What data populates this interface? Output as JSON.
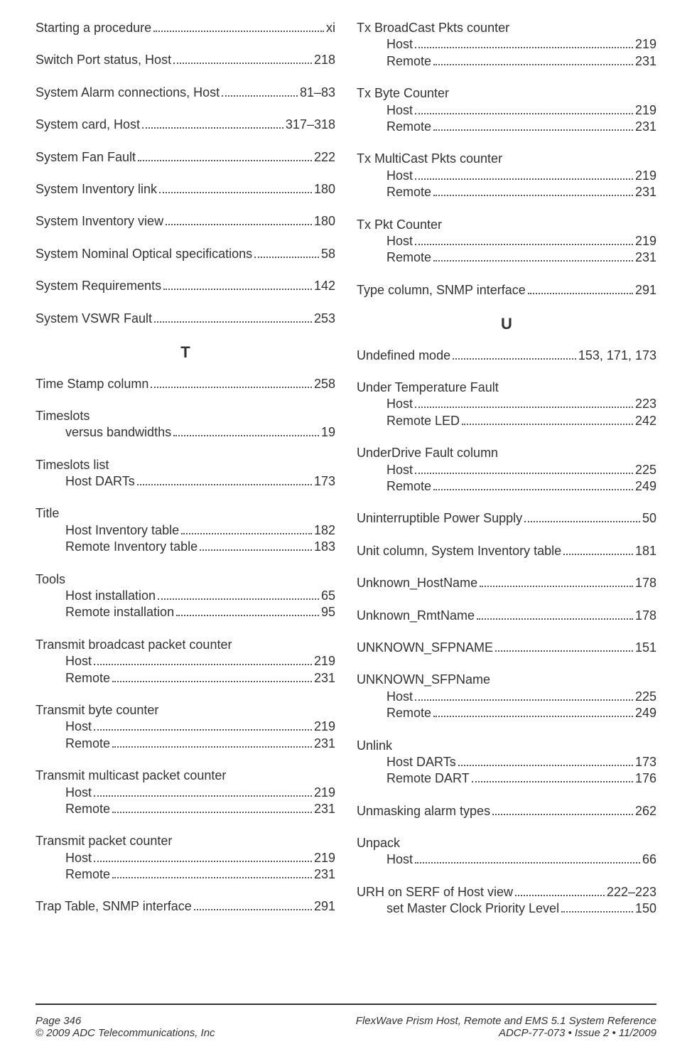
{
  "footer": {
    "page_label": "Page 346",
    "copyright": "©  2009 ADC Telecommunications, Inc",
    "doc_title": "FlexWave Prism Host, Remote and EMS 5.1 System Reference",
    "doc_meta": "ADCP-77-073   •   Issue 2   •   11/2009"
  },
  "section_T": "T",
  "section_U": "U",
  "left": [
    {
      "t": "single",
      "label": "Starting a procedure",
      "page": "xi"
    },
    {
      "t": "single",
      "label": "Switch Port status, Host",
      "page": "218"
    },
    {
      "t": "single",
      "label": "System Alarm connections, Host",
      "page": "81–83"
    },
    {
      "t": "single",
      "label": "System card, Host",
      "page": "317–318"
    },
    {
      "t": "single",
      "label": "System Fan Fault",
      "page": "222"
    },
    {
      "t": "single",
      "label": "System Inventory link",
      "page": "180"
    },
    {
      "t": "single",
      "label": "System Inventory view",
      "page": "180"
    },
    {
      "t": "single",
      "label": "System Nominal Optical specifications",
      "page": "58"
    },
    {
      "t": "single",
      "label": "System Requirements",
      "page": "142"
    },
    {
      "t": "single",
      "label": "System VSWR Fault",
      "page": "253"
    },
    {
      "t": "letter",
      "value": "T"
    },
    {
      "t": "single",
      "label": "Time Stamp column",
      "page": "258"
    },
    {
      "t": "group",
      "head": "Timeslots",
      "subs": [
        {
          "label": "versus bandwidths",
          "page": "19"
        }
      ]
    },
    {
      "t": "group",
      "head": "Timeslots list",
      "subs": [
        {
          "label": "Host DARTs",
          "page": "173"
        }
      ]
    },
    {
      "t": "group",
      "head": "Title",
      "subs": [
        {
          "label": "Host Inventory table",
          "page": "182"
        },
        {
          "label": "Remote Inventory table",
          "page": "183"
        }
      ]
    },
    {
      "t": "group",
      "head": "Tools",
      "subs": [
        {
          "label": "Host installation",
          "page": "65"
        },
        {
          "label": "Remote installation",
          "page": "95"
        }
      ]
    },
    {
      "t": "group",
      "head": "Transmit broadcast packet counter",
      "subs": [
        {
          "label": "Host",
          "page": "219"
        },
        {
          "label": "Remote",
          "page": "231"
        }
      ]
    },
    {
      "t": "group",
      "head": "Transmit byte counter",
      "subs": [
        {
          "label": "Host",
          "page": "219"
        },
        {
          "label": "Remote",
          "page": "231"
        }
      ]
    },
    {
      "t": "group",
      "head": "Transmit multicast packet counter",
      "subs": [
        {
          "label": "Host",
          "page": "219"
        },
        {
          "label": "Remote",
          "page": "231"
        }
      ]
    },
    {
      "t": "group",
      "head": "Transmit packet counter",
      "subs": [
        {
          "label": "Host",
          "page": "219"
        },
        {
          "label": "Remote",
          "page": "231"
        }
      ]
    },
    {
      "t": "single",
      "label": "Trap Table, SNMP interface",
      "page": "291"
    }
  ],
  "right": [
    {
      "t": "group",
      "head": "Tx BroadCast Pkts counter",
      "subs": [
        {
          "label": "Host",
          "page": "219"
        },
        {
          "label": "Remote",
          "page": "231"
        }
      ]
    },
    {
      "t": "group",
      "head": "Tx Byte Counter",
      "subs": [
        {
          "label": "Host",
          "page": "219"
        },
        {
          "label": "Remote",
          "page": "231"
        }
      ]
    },
    {
      "t": "group",
      "head": "Tx MultiCast Pkts counter",
      "subs": [
        {
          "label": "Host",
          "page": "219"
        },
        {
          "label": "Remote",
          "page": "231"
        }
      ]
    },
    {
      "t": "group",
      "head": "Tx Pkt Counter",
      "subs": [
        {
          "label": "Host",
          "page": "219"
        },
        {
          "label": "Remote",
          "page": "231"
        }
      ]
    },
    {
      "t": "single",
      "label": "Type column, SNMP interface",
      "page": "291"
    },
    {
      "t": "letter",
      "value": "U"
    },
    {
      "t": "single",
      "label": "Undefined mode",
      "page": "153, 171, 173"
    },
    {
      "t": "group",
      "head": "Under Temperature Fault",
      "subs": [
        {
          "label": "Host",
          "page": "223"
        },
        {
          "label": "Remote LED",
          "page": "242"
        }
      ]
    },
    {
      "t": "group",
      "head": "UnderDrive Fault column",
      "subs": [
        {
          "label": "Host",
          "page": "225"
        },
        {
          "label": "Remote",
          "page": "249"
        }
      ]
    },
    {
      "t": "single",
      "label": "Uninterruptible Power Supply",
      "page": "50"
    },
    {
      "t": "single",
      "label": "Unit column, System Inventory table",
      "page": "181"
    },
    {
      "t": "single",
      "label": "Unknown_HostName",
      "page": "178"
    },
    {
      "t": "single",
      "label": "Unknown_RmtName",
      "page": "178"
    },
    {
      "t": "single",
      "label": "UNKNOWN_SFPNAME",
      "page": "151"
    },
    {
      "t": "group",
      "head": "UNKNOWN_SFPName",
      "subs": [
        {
          "label": "Host",
          "page": "225"
        },
        {
          "label": "Remote",
          "page": "249"
        }
      ]
    },
    {
      "t": "group",
      "head": "Unlink",
      "subs": [
        {
          "label": "Host DARTs",
          "page": "173"
        },
        {
          "label": "Remote DART",
          "page": "176"
        }
      ]
    },
    {
      "t": "single",
      "label": "Unmasking alarm types",
      "page": "262"
    },
    {
      "t": "group",
      "head": "Unpack",
      "subs": [
        {
          "label": "Host",
          "page": "66"
        }
      ]
    },
    {
      "t": "groupline",
      "head_label": "URH on SERF of Host view",
      "head_page": "222–223",
      "subs": [
        {
          "label": "set Master Clock Priority Level",
          "page": "150"
        }
      ]
    }
  ]
}
